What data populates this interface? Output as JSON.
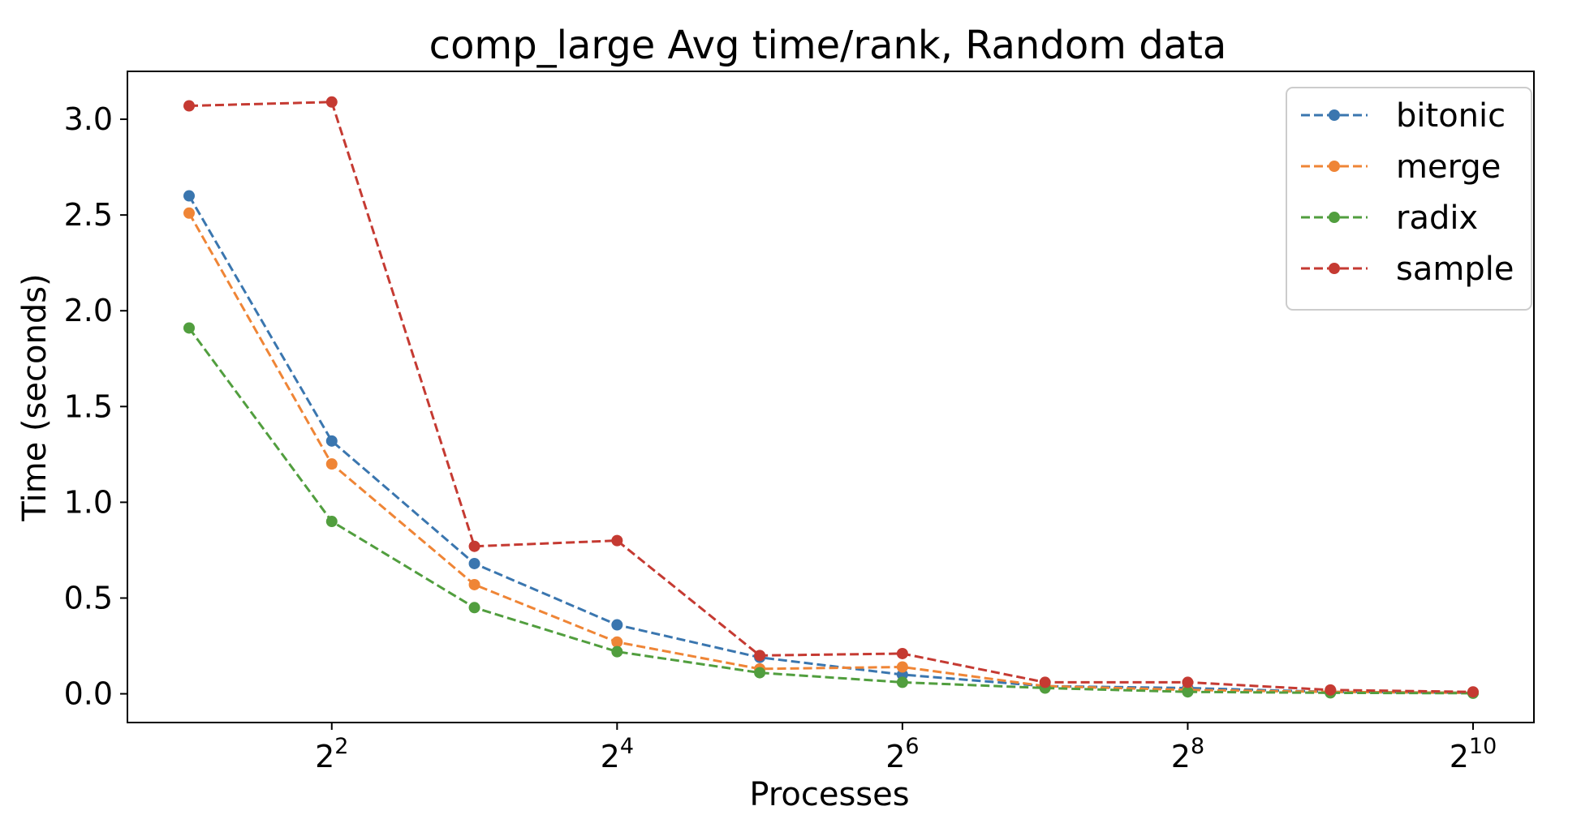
{
  "chart_data": {
    "type": "line",
    "title": "comp_large Avg time/rank, Random data",
    "xlabel": "Processes",
    "ylabel": "Time (seconds)",
    "x_scale": "log2",
    "x": [
      2,
      4,
      8,
      16,
      32,
      64,
      128,
      256,
      512,
      1024
    ],
    "x_ticks": [
      {
        "value": 4,
        "base": "2",
        "exp": "2"
      },
      {
        "value": 16,
        "base": "2",
        "exp": "4"
      },
      {
        "value": 64,
        "base": "2",
        "exp": "6"
      },
      {
        "value": 256,
        "base": "2",
        "exp": "8"
      },
      {
        "value": 1024,
        "base": "2",
        "exp": "10"
      }
    ],
    "y_ticks": [
      "0.0",
      "0.5",
      "1.0",
      "1.5",
      "2.0",
      "2.5",
      "3.0"
    ],
    "ylim": [
      -0.15,
      3.25
    ],
    "grid": false,
    "legend_position": "top-right",
    "series": [
      {
        "name": "bitonic",
        "color": "#3a76af",
        "values": [
          2.6,
          1.32,
          0.68,
          0.36,
          0.19,
          0.1,
          0.04,
          0.03,
          0.01,
          0.005
        ]
      },
      {
        "name": "merge",
        "color": "#ef8536",
        "values": [
          2.51,
          1.2,
          0.57,
          0.27,
          0.13,
          0.14,
          0.04,
          0.02,
          0.01,
          0.005
        ]
      },
      {
        "name": "radix",
        "color": "#519e3e",
        "values": [
          1.91,
          0.9,
          0.45,
          0.22,
          0.11,
          0.06,
          0.03,
          0.01,
          0.005,
          0.003
        ]
      },
      {
        "name": "sample",
        "color": "#c53a32",
        "values": [
          3.07,
          3.09,
          0.77,
          0.8,
          0.2,
          0.21,
          0.06,
          0.06,
          0.02,
          0.01
        ]
      }
    ]
  }
}
